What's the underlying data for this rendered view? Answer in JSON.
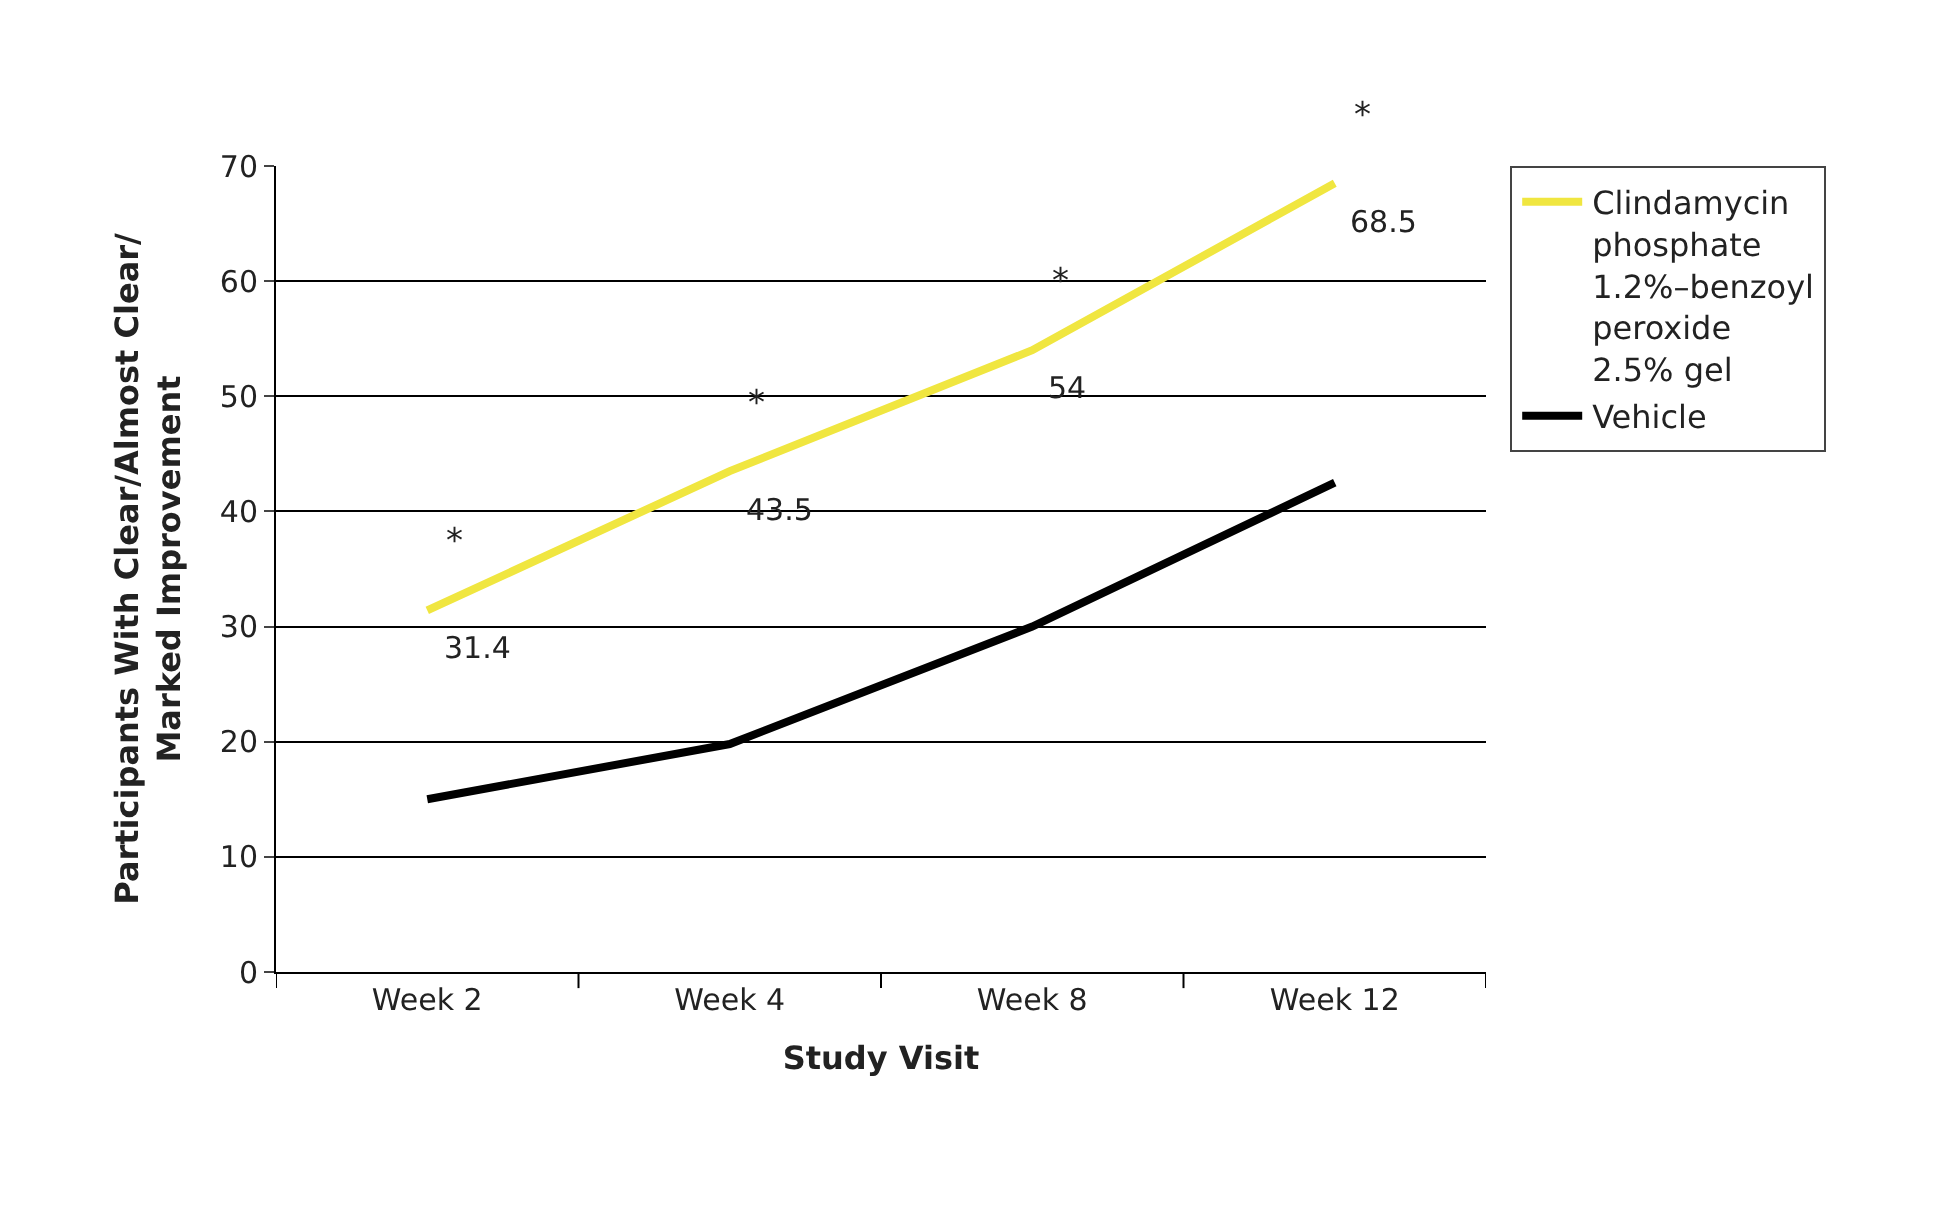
{
  "chart_data": {
    "type": "line",
    "xlabel": "Study Visit",
    "ylabel": "Participants With Clear/Almost Clear/\nMarked Improvement",
    "categories": [
      "Week 2",
      "Week 4",
      "Week 8",
      "Week 12"
    ],
    "series": [
      {
        "name": "Clindamycin phosphate 1.2%–benzoyl peroxide 2.5% gel",
        "color": "#f0e640",
        "values": [
          31.4,
          43.5,
          54,
          68.5
        ],
        "value_labels": [
          "31.4",
          "43.5",
          "54",
          "68.5"
        ]
      },
      {
        "name": "Vehicle",
        "color": "#000000",
        "values": [
          15,
          19.8,
          30,
          42.5
        ]
      }
    ],
    "annotations": [
      "*",
      "*",
      "*",
      "*"
    ],
    "ylim": [
      0,
      70
    ],
    "yticks": [
      0,
      10,
      20,
      30,
      40,
      50,
      60,
      70
    ],
    "grid": "y",
    "legend": "right",
    "marker": "none",
    "line_style": "solid"
  }
}
